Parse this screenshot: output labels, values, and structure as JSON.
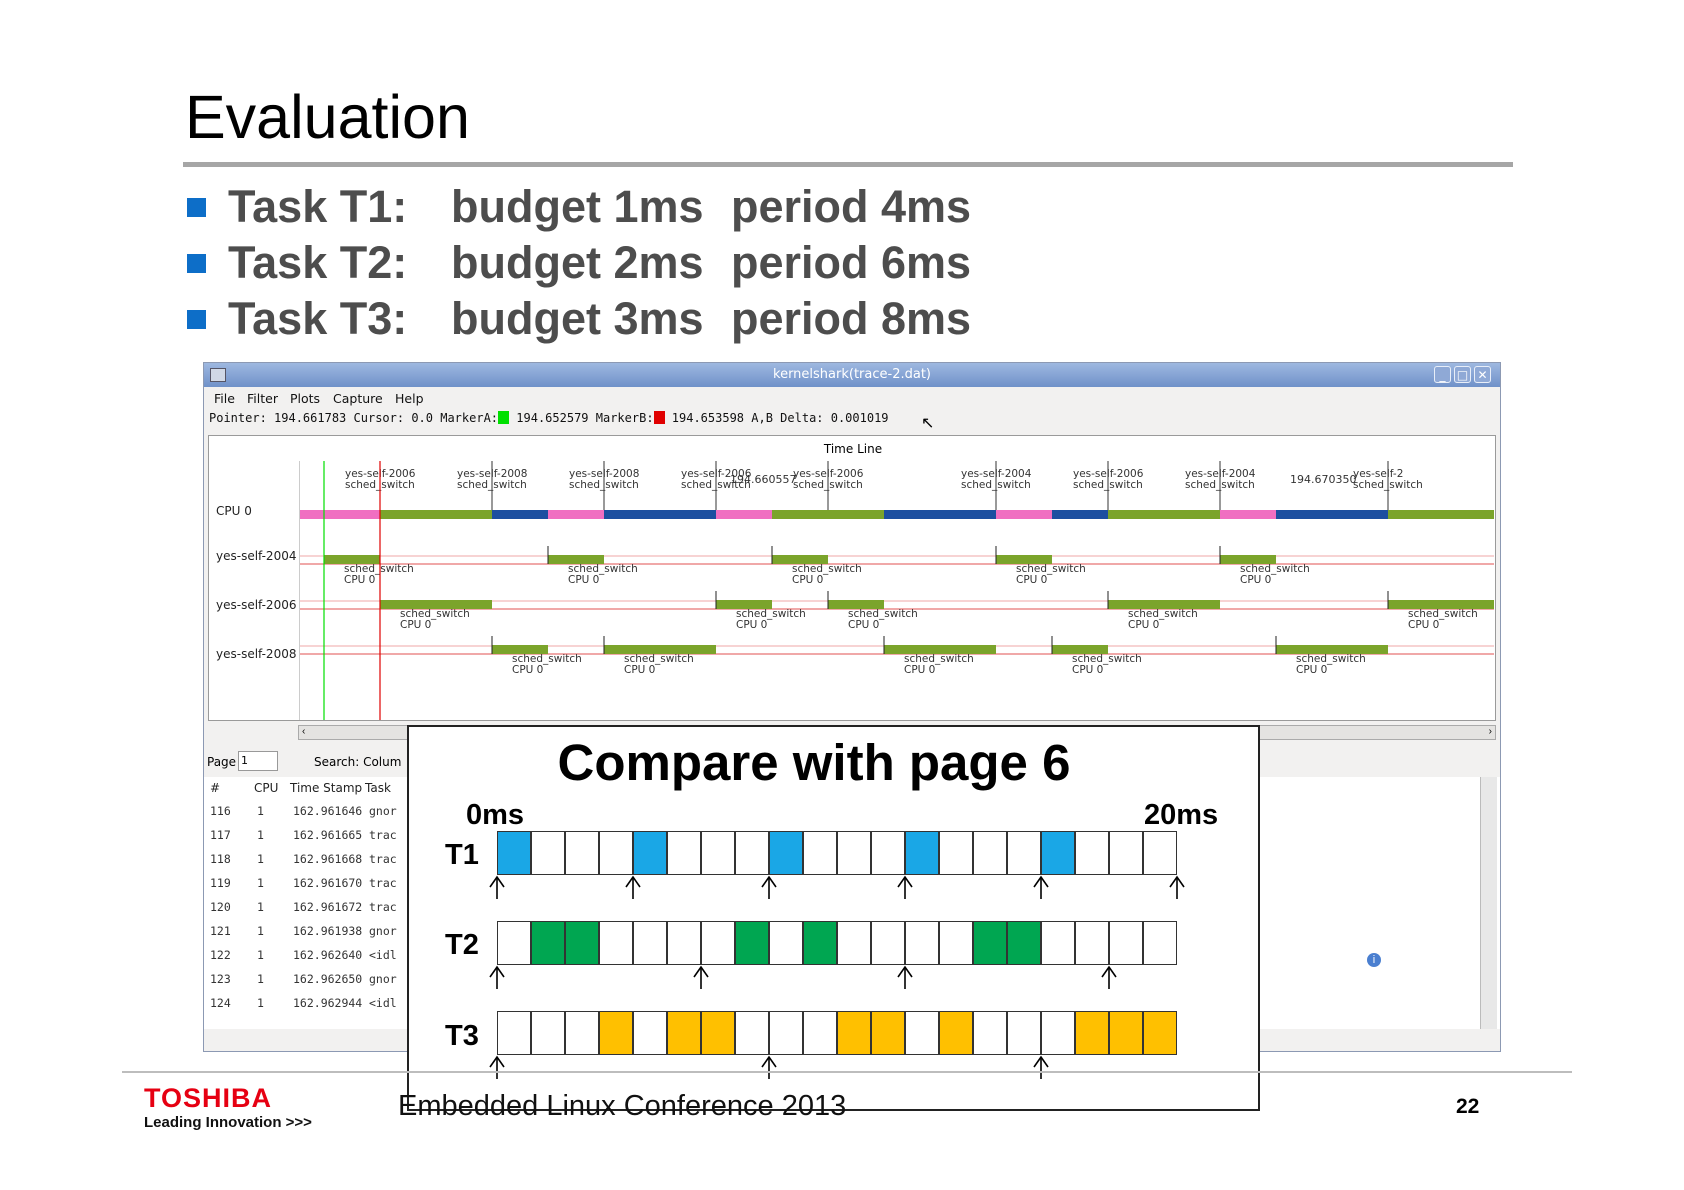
{
  "slide": {
    "title": "Evaluation",
    "bullets": [
      {
        "task": "Task T1:",
        "budget": "budget 1ms",
        "period": "period 4ms"
      },
      {
        "task": "Task T2:",
        "budget": "budget 2ms",
        "period": "period 6ms"
      },
      {
        "task": "Task T3:",
        "budget": "budget 3ms",
        "period": "period 8ms"
      }
    ],
    "footer": {
      "brand": "TOSHIBA",
      "tagline": "Leading Innovation >>>",
      "conference": "Embedded Linux Conference 2013",
      "page_number": "22"
    }
  },
  "window": {
    "title": "kernelshark(trace-2.dat)",
    "menu": [
      "File",
      "Filter",
      "Plots",
      "Capture",
      "Help"
    ],
    "pointer_bar": {
      "pointer": "Pointer: 194.661783",
      "cursor": "Cursor: 0.0",
      "marker_a_label": "MarkerA:",
      "marker_a": "194.652579",
      "marker_b_label": "MarkerB:",
      "marker_b": "194.653598",
      "delta": "A,B Delta: 0.001019"
    },
    "marker_colors": {
      "a": "#00e000",
      "b": "#e00000"
    },
    "graph": {
      "timeline_label": "Time Line",
      "rows": [
        "CPU 0",
        "yes-self-2004",
        "yes-self-2006",
        "yes-self-2008"
      ],
      "timestamp_1": "194.660557",
      "timestamp_2": "194.670350",
      "cpu_event_top": [
        "yes-self-2006",
        "yes-self-2008",
        "yes-self-2008",
        "yes-self-2006",
        "yes-self-2006",
        "yes-self-2004",
        "yes-self-2006",
        "yes-self-2004",
        "yes-self-2"
      ],
      "event_label": "sched_switch",
      "cpu_label": "CPU 0",
      "colors": {
        "2004": "#f06fc1",
        "2006": "#7ba42b",
        "2008": "#1c4fa0"
      }
    },
    "page_label": "Page",
    "page_value": "1",
    "search_label": "Search: Colum",
    "list": {
      "headers": [
        "#",
        "CPU",
        "Time Stamp",
        "Task"
      ],
      "rows": [
        {
          "n": "116",
          "cpu": "1",
          "ts": "162.961646",
          "task": "gnor"
        },
        {
          "n": "117",
          "cpu": "1",
          "ts": "162.961665",
          "task": "trac"
        },
        {
          "n": "118",
          "cpu": "1",
          "ts": "162.961668",
          "task": "trac"
        },
        {
          "n": "119",
          "cpu": "1",
          "ts": "162.961670",
          "task": "trac"
        },
        {
          "n": "120",
          "cpu": "1",
          "ts": "162.961672",
          "task": "trac"
        },
        {
          "n": "121",
          "cpu": "1",
          "ts": "162.961938",
          "task": "gnor"
        },
        {
          "n": "122",
          "cpu": "1",
          "ts": "162.962640",
          "task": "<idl"
        },
        {
          "n": "123",
          "cpu": "1",
          "ts": "162.962650",
          "task": "gnor"
        },
        {
          "n": "124",
          "cpu": "1",
          "ts": "162.962944",
          "task": "<idl"
        }
      ]
    }
  },
  "comparison": {
    "title": "Compare with page 6",
    "start_label": "0ms",
    "end_label": "20ms",
    "tasks": [
      {
        "name": "T1",
        "color": "#1aa7e6",
        "filled": [
          0,
          4,
          8,
          12,
          16
        ],
        "releases": [
          0,
          4,
          8,
          12,
          16,
          20
        ]
      },
      {
        "name": "T2",
        "color": "#00a651",
        "filled": [
          1,
          2,
          7,
          9,
          14,
          15
        ],
        "releases": [
          0,
          6,
          12,
          18
        ]
      },
      {
        "name": "T3",
        "color": "#ffc000",
        "filled": [
          3,
          5,
          6,
          10,
          11,
          13,
          17,
          18,
          19
        ],
        "releases": [
          0,
          8,
          16
        ]
      }
    ]
  }
}
